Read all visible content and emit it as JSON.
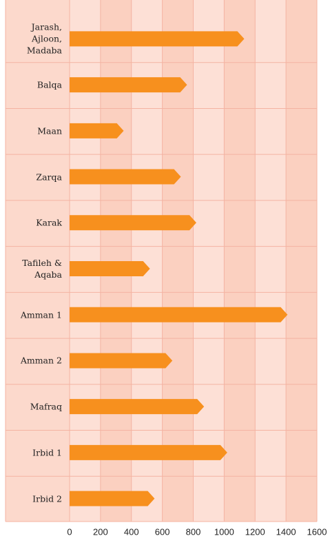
{
  "chart_data": {
    "type": "bar",
    "orientation": "horizontal",
    "categories": [
      "Jarash, Ajloon, Madaba",
      "Balqa",
      "Maan",
      "Zarqa",
      "Karak",
      "Tafileh & Aqaba",
      "Amman 1",
      "Amman 2",
      "Mafraq",
      "Irbid 1",
      "Irbid 2"
    ],
    "values": [
      1130,
      760,
      350,
      720,
      820,
      520,
      1410,
      665,
      870,
      1020,
      550
    ],
    "color": "#f7901e",
    "xlim": [
      0,
      1600
    ],
    "xticks": [
      0,
      200,
      400,
      600,
      800,
      1000,
      1200,
      1400,
      1600
    ],
    "grid": true
  }
}
